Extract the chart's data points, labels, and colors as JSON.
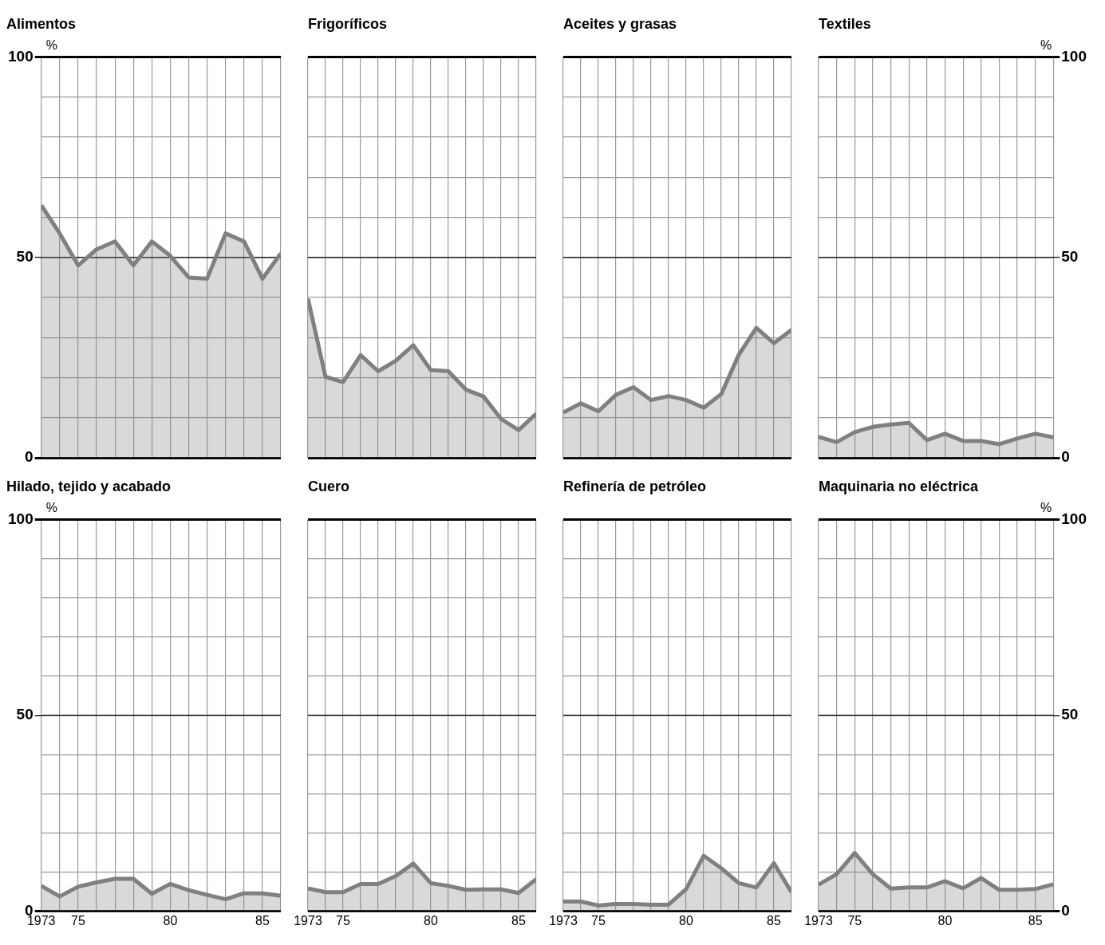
{
  "chart_data": [
    {
      "type": "area",
      "title": "Alimentos",
      "ylabel": "%",
      "x": [
        1973,
        1974,
        1975,
        1976,
        1977,
        1978,
        1979,
        1980,
        1981,
        1982,
        1983,
        1984,
        1985,
        1986
      ],
      "xlim": [
        1973,
        1986
      ],
      "xticks": [
        {
          "value": 1973,
          "label": null
        },
        {
          "value": 1974,
          "label": null
        },
        {
          "value": 1975,
          "label": null
        },
        {
          "value": 1976,
          "label": null
        },
        {
          "value": 1977,
          "label": null
        },
        {
          "value": 1978,
          "label": null
        },
        {
          "value": 1979,
          "label": null
        },
        {
          "value": 1980,
          "label": null
        },
        {
          "value": 1981,
          "label": null
        },
        {
          "value": 1982,
          "label": null
        },
        {
          "value": 1983,
          "label": null
        },
        {
          "value": 1984,
          "label": null
        },
        {
          "value": 1985,
          "label": null
        },
        {
          "value": 1986,
          "label": null
        }
      ],
      "ylim": [
        0,
        100
      ],
      "yticks": [
        0,
        {
          "value": 10,
          "label": null
        },
        {
          "value": 20,
          "label": null
        },
        {
          "value": 30,
          "label": null
        },
        {
          "value": 40,
          "label": null
        },
        50,
        {
          "value": 60,
          "label": null
        },
        {
          "value": 70,
          "label": null
        },
        {
          "value": 80,
          "label": null
        },
        {
          "value": 90,
          "label": null
        },
        100
      ],
      "grid": true,
      "tick_labels": "y",
      "ref_lines": [
        {
          "axis": "y",
          "value": 50,
          "color": "#000000"
        }
      ],
      "series": [
        {
          "color": "#808083",
          "values": [
            63,
            56,
            48,
            52,
            54,
            48,
            54,
            50.4,
            45,
            44.7,
            56,
            54,
            44.7,
            51
          ]
        }
      ]
    },
    {
      "type": "area",
      "title": "Frigoríficos",
      "x": [
        1973,
        1974,
        1975,
        1976,
        1977,
        1978,
        1979,
        1980,
        1981,
        1982,
        1983,
        1984,
        1985,
        1986
      ],
      "xlim": [
        1973,
        1986
      ],
      "xticks": [
        {
          "value": 1973,
          "label": null
        },
        {
          "value": 1974,
          "label": null
        },
        {
          "value": 1975,
          "label": null
        },
        {
          "value": 1976,
          "label": null
        },
        {
          "value": 1977,
          "label": null
        },
        {
          "value": 1978,
          "label": null
        },
        {
          "value": 1979,
          "label": null
        },
        {
          "value": 1980,
          "label": null
        },
        {
          "value": 1981,
          "label": null
        },
        {
          "value": 1982,
          "label": null
        },
        {
          "value": 1983,
          "label": null
        },
        {
          "value": 1984,
          "label": null
        },
        {
          "value": 1985,
          "label": null
        },
        {
          "value": 1986,
          "label": null
        }
      ],
      "ylim": [
        0,
        100
      ],
      "yticks": [
        {
          "value": 0,
          "label": null
        },
        {
          "value": 10,
          "label": null
        },
        {
          "value": 20,
          "label": null
        },
        {
          "value": 30,
          "label": null
        },
        {
          "value": 40,
          "label": null
        },
        {
          "value": 50,
          "label": null
        },
        {
          "value": 60,
          "label": null
        },
        {
          "value": 70,
          "label": null
        },
        {
          "value": 80,
          "label": null
        },
        {
          "value": 90,
          "label": null
        },
        {
          "value": 100,
          "label": null
        }
      ],
      "grid": true,
      "tick_labels": false,
      "ref_lines": [
        {
          "axis": "y",
          "value": 50,
          "color": "#000000"
        }
      ],
      "series": [
        {
          "color": "#808083",
          "values": [
            39.7,
            20.2,
            18.9,
            25.6,
            21.6,
            24.2,
            28.1,
            21.9,
            21.6,
            17,
            15.3,
            9.7,
            6.9,
            11
          ]
        }
      ]
    },
    {
      "type": "area",
      "title": "Aceites y grasas",
      "x": [
        1973,
        1974,
        1975,
        1976,
        1977,
        1978,
        1979,
        1980,
        1981,
        1982,
        1983,
        1984,
        1985,
        1986
      ],
      "xlim": [
        1973,
        1986
      ],
      "xticks": [
        {
          "value": 1973,
          "label": null
        },
        {
          "value": 1974,
          "label": null
        },
        {
          "value": 1975,
          "label": null
        },
        {
          "value": 1976,
          "label": null
        },
        {
          "value": 1977,
          "label": null
        },
        {
          "value": 1978,
          "label": null
        },
        {
          "value": 1979,
          "label": null
        },
        {
          "value": 1980,
          "label": null
        },
        {
          "value": 1981,
          "label": null
        },
        {
          "value": 1982,
          "label": null
        },
        {
          "value": 1983,
          "label": null
        },
        {
          "value": 1984,
          "label": null
        },
        {
          "value": 1985,
          "label": null
        },
        {
          "value": 1986,
          "label": null
        }
      ],
      "ylim": [
        0,
        100
      ],
      "yticks": [
        {
          "value": 0,
          "label": null
        },
        {
          "value": 10,
          "label": null
        },
        {
          "value": 20,
          "label": null
        },
        {
          "value": 30,
          "label": null
        },
        {
          "value": 40,
          "label": null
        },
        {
          "value": 50,
          "label": null
        },
        {
          "value": 60,
          "label": null
        },
        {
          "value": 70,
          "label": null
        },
        {
          "value": 80,
          "label": null
        },
        {
          "value": 90,
          "label": null
        },
        {
          "value": 100,
          "label": null
        }
      ],
      "grid": true,
      "tick_labels": false,
      "ref_lines": [
        {
          "axis": "y",
          "value": 50,
          "color": "#000000"
        }
      ],
      "series": [
        {
          "color": "#808083",
          "values": [
            11.3,
            13.6,
            11.6,
            15.7,
            17.6,
            14.4,
            15.4,
            14.4,
            12.5,
            15.9,
            25.7,
            32.4,
            28.6,
            31.9
          ]
        }
      ]
    },
    {
      "type": "area",
      "title": "Textiles",
      "ylabel": "%",
      "x": [
        1973,
        1974,
        1975,
        1976,
        1977,
        1978,
        1979,
        1980,
        1981,
        1982,
        1983,
        1984,
        1985,
        1986
      ],
      "xlim": [
        1973,
        1986
      ],
      "xticks": [
        {
          "value": 1973,
          "label": null
        },
        {
          "value": 1974,
          "label": null
        },
        {
          "value": 1975,
          "label": null
        },
        {
          "value": 1976,
          "label": null
        },
        {
          "value": 1977,
          "label": null
        },
        {
          "value": 1978,
          "label": null
        },
        {
          "value": 1979,
          "label": null
        },
        {
          "value": 1980,
          "label": null
        },
        {
          "value": 1981,
          "label": null
        },
        {
          "value": 1982,
          "label": null
        },
        {
          "value": 1983,
          "label": null
        },
        {
          "value": 1984,
          "label": null
        },
        {
          "value": 1985,
          "label": null
        },
        {
          "value": 1986,
          "label": null
        }
      ],
      "ylim": [
        0,
        100
      ],
      "yticks": [
        0,
        {
          "value": 10,
          "label": null
        },
        {
          "value": 20,
          "label": null
        },
        {
          "value": 30,
          "label": null
        },
        {
          "value": 40,
          "label": null
        },
        50,
        {
          "value": 60,
          "label": null
        },
        {
          "value": 70,
          "label": null
        },
        {
          "value": 80,
          "label": null
        },
        {
          "value": 90,
          "label": null
        },
        100
      ],
      "grid": true,
      "tick_labels": "y",
      "ref_lines": [
        {
          "axis": "y",
          "value": 50,
          "color": "#000000"
        }
      ],
      "series": [
        {
          "color": "#808083",
          "values": [
            5.2,
            3.9,
            6.4,
            7.7,
            8.3,
            8.7,
            4.4,
            6,
            4.2,
            4.2,
            3.4,
            4.8,
            6,
            5.1
          ]
        }
      ]
    },
    {
      "type": "area",
      "title": "Hilado, tejido y acabado",
      "ylabel": "%",
      "x": [
        1973,
        1974,
        1975,
        1976,
        1977,
        1978,
        1979,
        1980,
        1981,
        1982,
        1983,
        1984,
        1985,
        1986
      ],
      "xlim": [
        1973,
        1986
      ],
      "xticks": [
        {
          "value": 1973,
          "label": "1973"
        },
        {
          "value": 1974,
          "label": null
        },
        {
          "value": 1975,
          "label": "75"
        },
        {
          "value": 1976,
          "label": null
        },
        {
          "value": 1977,
          "label": null
        },
        {
          "value": 1978,
          "label": null
        },
        {
          "value": 1979,
          "label": null
        },
        {
          "value": 1980,
          "label": "80"
        },
        {
          "value": 1981,
          "label": null
        },
        {
          "value": 1982,
          "label": null
        },
        {
          "value": 1983,
          "label": null
        },
        {
          "value": 1984,
          "label": null
        },
        {
          "value": 1985,
          "label": "85"
        },
        {
          "value": 1986,
          "label": null
        }
      ],
      "ylim": [
        0,
        100
      ],
      "yticks": [
        0,
        {
          "value": 10,
          "label": null
        },
        {
          "value": 20,
          "label": null
        },
        {
          "value": 30,
          "label": null
        },
        {
          "value": 40,
          "label": null
        },
        50,
        {
          "value": 60,
          "label": null
        },
        {
          "value": 70,
          "label": null
        },
        {
          "value": 80,
          "label": null
        },
        {
          "value": 90,
          "label": null
        },
        100
      ],
      "grid": true,
      "ref_lines": [
        {
          "axis": "y",
          "value": 50,
          "color": "#000000"
        }
      ],
      "series": [
        {
          "color": "#808083",
          "values": [
            6.5,
            3.8,
            6.3,
            7.4,
            8.3,
            8.3,
            4.5,
            7,
            5.4,
            4.2,
            3.1,
            4.6,
            4.6,
            4
          ]
        }
      ]
    },
    {
      "type": "area",
      "title": "Cuero",
      "x": [
        1973,
        1974,
        1975,
        1976,
        1977,
        1978,
        1979,
        1980,
        1981,
        1982,
        1983,
        1984,
        1985,
        1986
      ],
      "xlim": [
        1973,
        1986
      ],
      "xticks": [
        {
          "value": 1973,
          "label": "1973"
        },
        {
          "value": 1974,
          "label": null
        },
        {
          "value": 1975,
          "label": "75"
        },
        {
          "value": 1976,
          "label": null
        },
        {
          "value": 1977,
          "label": null
        },
        {
          "value": 1978,
          "label": null
        },
        {
          "value": 1979,
          "label": null
        },
        {
          "value": 1980,
          "label": "80"
        },
        {
          "value": 1981,
          "label": null
        },
        {
          "value": 1982,
          "label": null
        },
        {
          "value": 1983,
          "label": null
        },
        {
          "value": 1984,
          "label": null
        },
        {
          "value": 1985,
          "label": "85"
        },
        {
          "value": 1986,
          "label": null
        }
      ],
      "ylim": [
        0,
        100
      ],
      "yticks": [
        {
          "value": 0,
          "label": null
        },
        {
          "value": 10,
          "label": null
        },
        {
          "value": 20,
          "label": null
        },
        {
          "value": 30,
          "label": null
        },
        {
          "value": 40,
          "label": null
        },
        {
          "value": 50,
          "label": null
        },
        {
          "value": 60,
          "label": null
        },
        {
          "value": 70,
          "label": null
        },
        {
          "value": 80,
          "label": null
        },
        {
          "value": 90,
          "label": null
        },
        {
          "value": 100,
          "label": null
        }
      ],
      "grid": true,
      "tick_labels": "x",
      "ref_lines": [
        {
          "axis": "y",
          "value": 50,
          "color": "#000000"
        }
      ],
      "series": [
        {
          "color": "#808083",
          "values": [
            5.9,
            4.9,
            4.9,
            7,
            7,
            9,
            12.2,
            7.2,
            6.5,
            5.5,
            5.6,
            5.6,
            4.7,
            8.2
          ]
        }
      ]
    },
    {
      "type": "area",
      "title": "Refinería de petróleo",
      "x": [
        1973,
        1974,
        1975,
        1976,
        1977,
        1978,
        1979,
        1980,
        1981,
        1982,
        1983,
        1984,
        1985,
        1986
      ],
      "xlim": [
        1973,
        1986
      ],
      "xticks": [
        {
          "value": 1973,
          "label": "1973"
        },
        {
          "value": 1974,
          "label": null
        },
        {
          "value": 1975,
          "label": "75"
        },
        {
          "value": 1976,
          "label": null
        },
        {
          "value": 1977,
          "label": null
        },
        {
          "value": 1978,
          "label": null
        },
        {
          "value": 1979,
          "label": null
        },
        {
          "value": 1980,
          "label": "80"
        },
        {
          "value": 1981,
          "label": null
        },
        {
          "value": 1982,
          "label": null
        },
        {
          "value": 1983,
          "label": null
        },
        {
          "value": 1984,
          "label": null
        },
        {
          "value": 1985,
          "label": "85"
        },
        {
          "value": 1986,
          "label": null
        }
      ],
      "ylim": [
        0,
        100
      ],
      "yticks": [
        {
          "value": 0,
          "label": null
        },
        {
          "value": 10,
          "label": null
        },
        {
          "value": 20,
          "label": null
        },
        {
          "value": 30,
          "label": null
        },
        {
          "value": 40,
          "label": null
        },
        {
          "value": 50,
          "label": null
        },
        {
          "value": 60,
          "label": null
        },
        {
          "value": 70,
          "label": null
        },
        {
          "value": 80,
          "label": null
        },
        {
          "value": 90,
          "label": null
        },
        {
          "value": 100,
          "label": null
        }
      ],
      "grid": true,
      "tick_labels": "x",
      "ref_lines": [
        {
          "axis": "y",
          "value": 50,
          "color": "#000000"
        }
      ],
      "series": [
        {
          "color": "#808083",
          "values": [
            2.5,
            2.5,
            1.5,
            1.9,
            1.9,
            1.7,
            1.7,
            5.7,
            14.2,
            11,
            7.2,
            6.1,
            12.3,
            4.9
          ]
        }
      ]
    },
    {
      "type": "area",
      "title": "Maquinaria no eléctrica",
      "ylabel": "%",
      "x": [
        1973,
        1974,
        1975,
        1976,
        1977,
        1978,
        1979,
        1980,
        1981,
        1982,
        1983,
        1984,
        1985,
        1986
      ],
      "xlim": [
        1973,
        1986
      ],
      "xticks": [
        {
          "value": 1973,
          "label": "1973"
        },
        {
          "value": 1974,
          "label": null
        },
        {
          "value": 1975,
          "label": "75"
        },
        {
          "value": 1976,
          "label": null
        },
        {
          "value": 1977,
          "label": null
        },
        {
          "value": 1978,
          "label": null
        },
        {
          "value": 1979,
          "label": null
        },
        {
          "value": 1980,
          "label": "80"
        },
        {
          "value": 1981,
          "label": null
        },
        {
          "value": 1982,
          "label": null
        },
        {
          "value": 1983,
          "label": null
        },
        {
          "value": 1984,
          "label": null
        },
        {
          "value": 1985,
          "label": "85"
        },
        {
          "value": 1986,
          "label": null
        }
      ],
      "ylim": [
        0,
        100
      ],
      "yticks": [
        0,
        {
          "value": 10,
          "label": null
        },
        {
          "value": 20,
          "label": null
        },
        {
          "value": 30,
          "label": null
        },
        {
          "value": 40,
          "label": null
        },
        50,
        {
          "value": 60,
          "label": null
        },
        {
          "value": 70,
          "label": null
        },
        {
          "value": 80,
          "label": null
        },
        {
          "value": 90,
          "label": null
        },
        100
      ],
      "grid": true,
      "ref_lines": [
        {
          "axis": "y",
          "value": 50,
          "color": "#000000"
        }
      ],
      "series": [
        {
          "color": "#808083",
          "values": [
            6.8,
            9.5,
            14.9,
            9.5,
            5.8,
            6.1,
            6.1,
            7.7,
            5.9,
            8.5,
            5.5,
            5.5,
            5.7,
            6.9
          ]
        }
      ]
    }
  ]
}
